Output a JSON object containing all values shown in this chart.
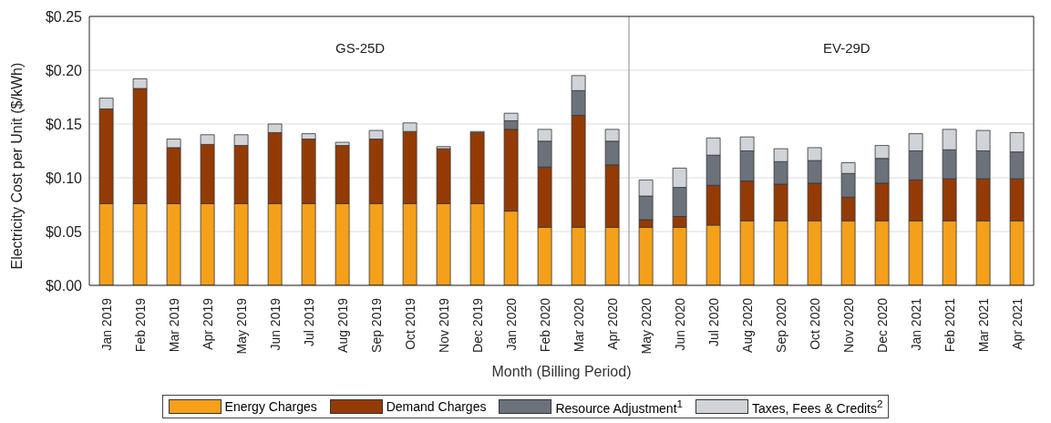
{
  "chart_data": {
    "type": "bar",
    "stacked": true,
    "xlabel": "Month (Billing Period)",
    "ylabel": "Electricity Cost per Unit ($/kWh)",
    "categories": [
      "Jan 2019",
      "Feb 2019",
      "Mar 2019",
      "Apr 2019",
      "May 2019",
      "Jun 2019",
      "Jul 2019",
      "Aug 2019",
      "Sep 2019",
      "Oct 2019",
      "Nov 2019",
      "Dec 2019",
      "Jan 2020",
      "Feb 2020",
      "Mar 2020",
      "Apr 2020",
      "May 2020",
      "Jun 2020",
      "Jul 2020",
      "Aug 2020",
      "Sep 2020",
      "Oct 2020",
      "Nov 2020",
      "Dec 2020",
      "Jan 2021",
      "Feb 2021",
      "Mar 2021",
      "Apr 2021"
    ],
    "series": [
      {
        "name": "Energy Charges",
        "color": "#f5a01a",
        "values": [
          0.076,
          0.076,
          0.076,
          0.076,
          0.076,
          0.076,
          0.076,
          0.076,
          0.076,
          0.076,
          0.076,
          0.076,
          0.069,
          0.054,
          0.054,
          0.054,
          0.054,
          0.054,
          0.056,
          0.06,
          0.06,
          0.06,
          0.06,
          0.06,
          0.06,
          0.06,
          0.06,
          0.06
        ]
      },
      {
        "name": "Demand Charges",
        "color": "#943b05",
        "values": [
          0.088,
          0.107,
          0.052,
          0.055,
          0.054,
          0.066,
          0.06,
          0.054,
          0.06,
          0.067,
          0.051,
          0.066,
          0.076,
          0.056,
          0.104,
          0.058,
          0.007,
          0.01,
          0.037,
          0.037,
          0.034,
          0.035,
          0.022,
          0.035,
          0.038,
          0.039,
          0.039,
          0.039
        ]
      },
      {
        "name": "Resource Adjustment$^{1}$",
        "color": "#6b727b",
        "values": [
          0,
          0,
          0,
          0,
          0,
          0,
          0,
          0,
          0,
          0,
          0,
          0,
          0.008,
          0.024,
          0.023,
          0.022,
          0.022,
          0.027,
          0.028,
          0.028,
          0.021,
          0.021,
          0.022,
          0.023,
          0.027,
          0.027,
          0.026,
          0.025
        ]
      },
      {
        "name": "Taxes, Fees & Credits$^{2}$",
        "color": "#d0d4d8",
        "values": [
          0.01,
          0.009,
          0.008,
          0.009,
          0.01,
          0.008,
          0.005,
          0.003,
          0.008,
          0.008,
          0.002,
          0.001,
          0.007,
          0.011,
          0.014,
          0.011,
          0.015,
          0.018,
          0.016,
          0.013,
          0.012,
          0.012,
          0.01,
          0.012,
          0.016,
          0.019,
          0.019,
          0.018
        ]
      }
    ],
    "ylim": [
      0,
      0.25
    ],
    "yticks": [
      {
        "value": 0,
        "label": "$0.00"
      },
      {
        "value": 0.05,
        "label": "$0.05"
      },
      {
        "value": 0.1,
        "label": "$0.10"
      },
      {
        "value": 0.15,
        "label": "$0.15"
      },
      {
        "value": 0.2,
        "label": "$0.20"
      },
      {
        "value": 0.25,
        "label": "$0.25"
      }
    ],
    "ref_lines": [
      {
        "axis": "x",
        "value": "May 2020",
        "color": "#888888"
      }
    ],
    "annotations": [
      "GS-25D",
      "EV-29D"
    ],
    "grid": "y",
    "legend": "bottom"
  }
}
